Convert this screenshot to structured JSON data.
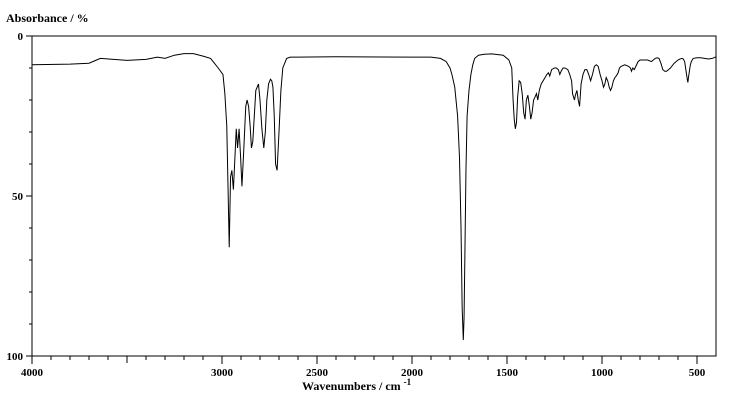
{
  "chart_data": {
    "type": "line",
    "title": "",
    "xlabel": "Wavenumbers / cm",
    "xlabel_sup": "-1",
    "ylabel": "Absorbance / %",
    "xlim": [
      4000,
      400
    ],
    "ylim": [
      0,
      100
    ],
    "y_inverted": true,
    "grid": false,
    "x_major_ticks": [
      4000,
      3000,
      2500,
      2000,
      1500,
      1000,
      500
    ],
    "x_tick_labels": [
      "4000",
      "3000",
      "2500",
      "2000",
      "1500",
      "1000",
      "500"
    ],
    "y_major_ticks": [
      0,
      50,
      100
    ],
    "y_tick_labels": [
      "0",
      "50",
      "100"
    ],
    "series": [
      {
        "color": "#000000",
        "x": [
          4000,
          3800,
          3700,
          3660,
          3640,
          3500,
          3400,
          3340,
          3300,
          3250,
          3200,
          3150,
          3100,
          3060,
          3040,
          3020,
          2995,
          2985,
          2975,
          2968,
          2962,
          2955,
          2948,
          2940,
          2932,
          2925,
          2918,
          2910,
          2902,
          2895,
          2885,
          2875,
          2868,
          2860,
          2852,
          2845,
          2838,
          2830,
          2822,
          2815,
          2808,
          2800,
          2790,
          2780,
          2772,
          2764,
          2755,
          2745,
          2738,
          2732,
          2725,
          2718,
          2710,
          2700,
          2690,
          2680,
          2660,
          2640,
          2600,
          2400,
          2000,
          1900,
          1850,
          1820,
          1800,
          1790,
          1775,
          1760,
          1750,
          1742,
          1736,
          1730,
          1726,
          1722,
          1716,
          1710,
          1700,
          1690,
          1680,
          1670,
          1650,
          1620,
          1580,
          1520,
          1490,
          1475,
          1468,
          1462,
          1456,
          1450,
          1444,
          1436,
          1428,
          1420,
          1412,
          1405,
          1398,
          1390,
          1382,
          1375,
          1368,
          1360,
          1352,
          1345,
          1338,
          1330,
          1320,
          1300,
          1290,
          1282,
          1275,
          1265,
          1250,
          1240,
          1230,
          1222,
          1215,
          1205,
          1195,
          1180,
          1170,
          1160,
          1155,
          1150,
          1145,
          1140,
          1132,
          1125,
          1118,
          1110,
          1100,
          1090,
          1080,
          1070,
          1060,
          1050,
          1040,
          1030,
          1020,
          1010,
          1000,
          992,
          985,
          978,
          970,
          962,
          955,
          948,
          940,
          932,
          925,
          920,
          915,
          908,
          900,
          880,
          860,
          850,
          845,
          838,
          830,
          822,
          810,
          800,
          760,
          740,
          730,
          720,
          710,
          700,
          690,
          680,
          670,
          660,
          640,
          620,
          600,
          590,
          580,
          572,
          565,
          560,
          555,
          550,
          548,
          545,
          540,
          535,
          530,
          520,
          500,
          480,
          460,
          440,
          420,
          400
        ],
        "values": [
          9,
          8.8,
          8.5,
          7.5,
          7,
          7.6,
          7.3,
          6.6,
          7,
          6,
          5.5,
          5.5,
          6.3,
          7,
          8.5,
          10,
          12,
          18,
          28,
          48,
          66,
          44,
          42,
          48,
          38,
          29,
          35,
          29,
          38,
          47,
          35,
          22,
          20,
          22,
          28,
          35,
          33,
          25,
          17,
          16,
          15,
          20,
          29,
          35,
          30,
          20,
          15,
          13.5,
          14,
          16,
          25,
          40,
          42,
          30,
          17,
          10,
          7,
          6.6,
          6.6,
          6.5,
          6.6,
          6.6,
          7,
          8,
          10,
          12,
          16,
          25,
          38,
          60,
          85,
          95,
          88,
          70,
          42,
          25,
          17,
          12,
          9,
          7,
          6,
          5.7,
          5.6,
          6,
          7.5,
          10,
          20,
          26,
          29,
          27,
          19,
          14,
          14.5,
          18,
          24,
          26,
          20,
          18.5,
          22,
          26,
          24,
          20,
          19,
          18,
          20,
          17,
          15,
          13,
          12,
          11.5,
          12.5,
          10.5,
          10,
          10,
          10.5,
          12,
          11,
          10,
          10,
          10.5,
          12,
          14,
          18,
          19,
          20,
          18.5,
          17,
          20,
          22,
          15,
          12,
          10.5,
          10.5,
          12,
          14,
          12,
          9.5,
          9,
          9.5,
          12,
          14,
          16,
          15,
          13,
          14,
          16,
          17,
          16,
          14,
          13,
          12.5,
          12,
          11.5,
          10,
          9.5,
          9,
          9.5,
          10,
          11,
          10,
          10.5,
          9.5,
          8,
          7.5,
          7.5,
          8,
          7.5,
          7,
          6.8,
          7,
          8.5,
          10.5,
          11,
          11,
          10,
          8.5,
          7.5,
          7.2,
          7,
          7.2,
          8,
          10,
          12,
          14,
          14.5,
          13,
          11,
          9,
          8,
          7,
          6.8,
          6.8,
          7,
          7.2,
          7,
          6.5
        ]
      }
    ]
  }
}
